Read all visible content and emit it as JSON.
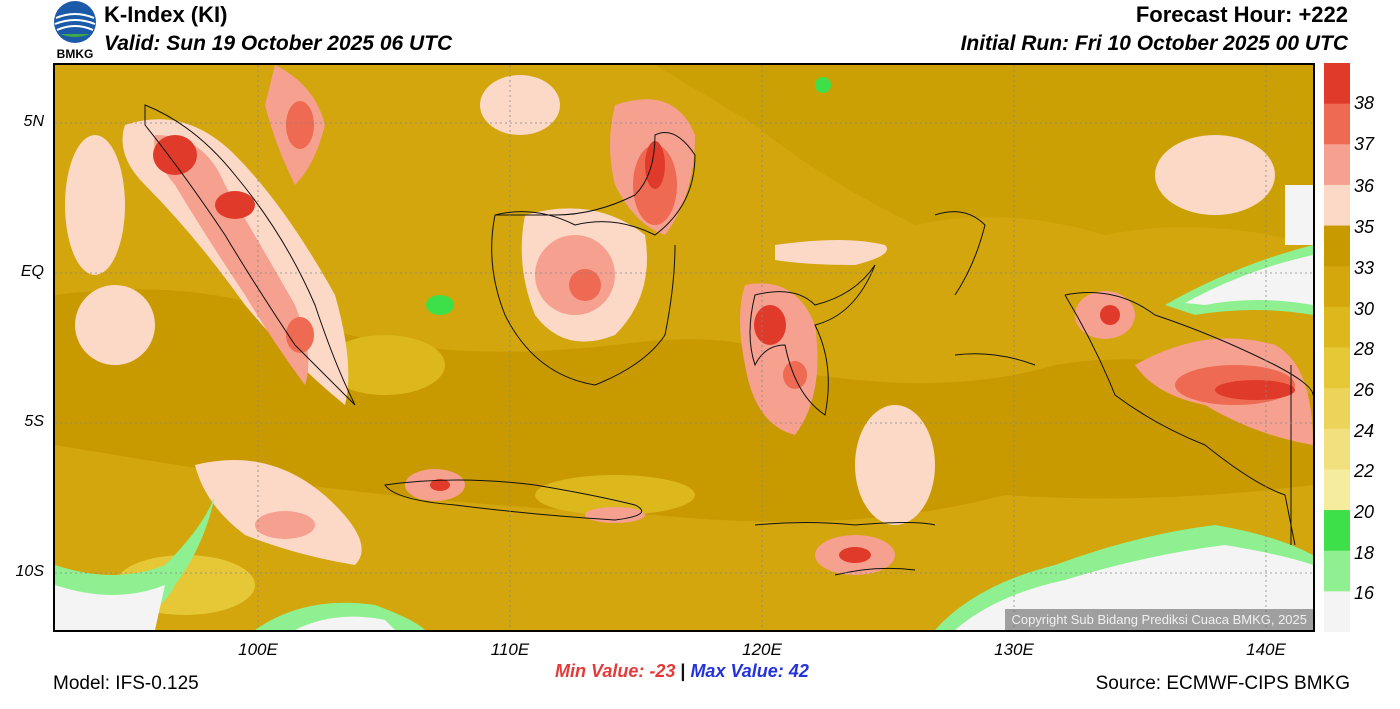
{
  "logo": {
    "text": "BMKG"
  },
  "header": {
    "title": "K-Index (KI)",
    "valid": "Valid: Sun 19 October 2025 06 UTC",
    "forecast_hour": "Forecast Hour: +222",
    "initial_run": "Initial Run: Fri 10 October 2025 00 UTC"
  },
  "axes": {
    "lat_labels": [
      "5N",
      "EQ",
      "5S",
      "10S"
    ],
    "lon_labels": [
      "100E",
      "110E",
      "120E",
      "130E",
      "140E"
    ]
  },
  "colorbar": {
    "labels": [
      "38",
      "37",
      "36",
      "35",
      "33",
      "30",
      "28",
      "26",
      "24",
      "22",
      "20",
      "18",
      "16"
    ],
    "colors": [
      "#e03a2a",
      "#ee6a52",
      "#f6a090",
      "#fcd8c6",
      "#c89a00",
      "#d4a80c",
      "#dcb81c",
      "#e6c836",
      "#ecd45a",
      "#f2e07e",
      "#f6ec9e",
      "#3ee04a",
      "#8ef090",
      "#f4f4f4"
    ]
  },
  "map": {
    "copyright": "Copyright Sub Bidang Prediksi Cuaca BMKG, 2025"
  },
  "stats": {
    "min": "Min Value: -23",
    "separator": "|",
    "max": "Max Value:  42"
  },
  "footer": {
    "model": "Model: IFS-0.125",
    "source": "Source: ECMWF-CIPS BMKG"
  }
}
